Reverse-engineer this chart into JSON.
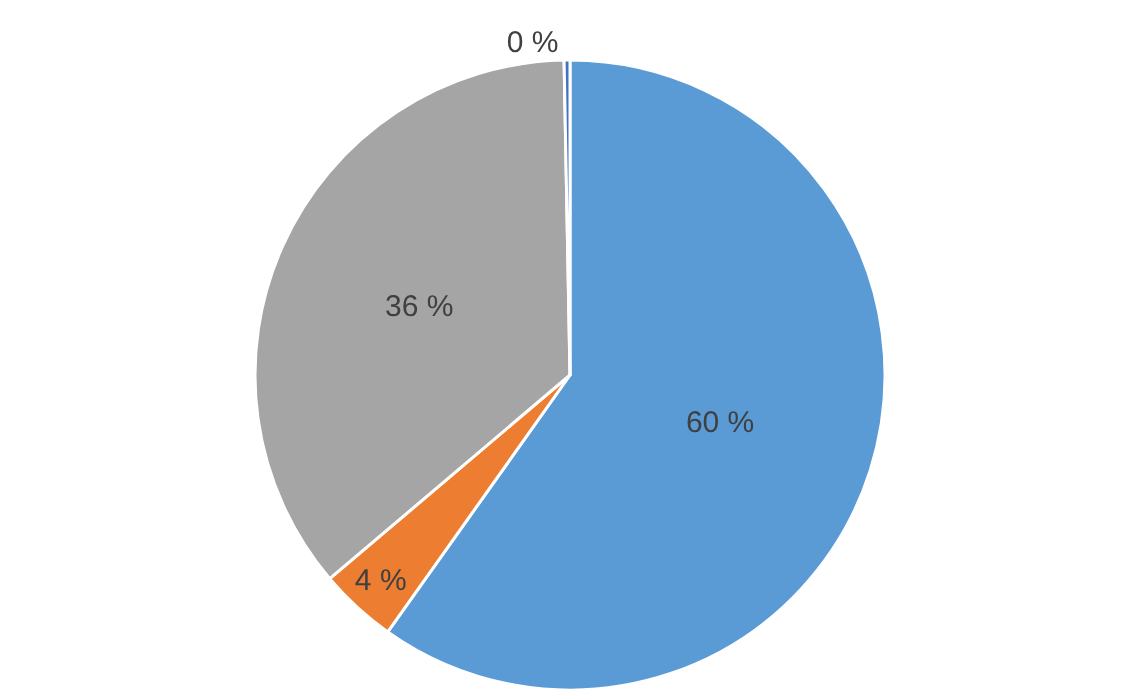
{
  "chart_data": {
    "type": "pie",
    "categories": [
      null,
      null,
      null,
      null
    ],
    "values": [
      60,
      4,
      36,
      0.3
    ],
    "colors": [
      "#5b9bd5",
      "#ed7d31",
      "#a5a5a5",
      "#4472c4"
    ],
    "value_labels": [
      "60 %",
      "4 %",
      "36 %",
      "0 %"
    ],
    "legend": false
  }
}
